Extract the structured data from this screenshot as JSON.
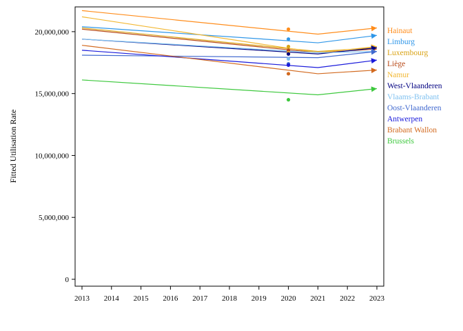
{
  "chart_data": {
    "type": "line",
    "title": "",
    "xlabel": "",
    "ylabel": "Fitted Utilisation Rate",
    "xlim": [
      2013,
      2023
    ],
    "ylim": [
      0,
      22000000
    ],
    "x_ticks": [
      "2013",
      "2014",
      "2015",
      "2016",
      "2017",
      "2018",
      "2019",
      "2020",
      "2021",
      "2022",
      "2023"
    ],
    "y_ticks": [
      {
        "value": 0,
        "label": "0"
      },
      {
        "value": 5000000,
        "label": "5,000,000"
      },
      {
        "value": 10000000,
        "label": "10,000,000"
      },
      {
        "value": 15000000,
        "label": "15,000,000"
      },
      {
        "value": 20000000,
        "label": "20,000,000"
      }
    ],
    "grid": false,
    "legend_position": "right",
    "series": [
      {
        "name": "Hainaut",
        "color": "#ff8c1a",
        "fit": [
          [
            2013,
            21700000
          ],
          [
            2021,
            19800000
          ],
          [
            2023,
            20300000
          ]
        ],
        "observed_2020": 20200000
      },
      {
        "name": "Limburg",
        "color": "#2e96e8",
        "fit": [
          [
            2013,
            20400000
          ],
          [
            2021,
            19100000
          ],
          [
            2023,
            19700000
          ]
        ],
        "observed_2020": 19400000
      },
      {
        "name": "Luxembourg",
        "color": "#d9a316",
        "fit": [
          [
            2013,
            20300000
          ],
          [
            2021,
            18400000
          ],
          [
            2023,
            18700000
          ]
        ],
        "observed_2020": 18800000
      },
      {
        "name": "Liège",
        "color": "#b84a18",
        "fit": [
          [
            2013,
            20200000
          ],
          [
            2021,
            18300000
          ],
          [
            2023,
            18600000
          ]
        ],
        "observed_2020": 18500000
      },
      {
        "name": "Namur",
        "color": "#f2b731",
        "fit": [
          [
            2013,
            21200000
          ],
          [
            2021,
            18300000
          ],
          [
            2023,
            18800000
          ]
        ],
        "observed_2020": 18300000
      },
      {
        "name": "West-Vlaanderen",
        "color": "#000080",
        "fit": [
          [
            2013,
            19400000
          ],
          [
            2021,
            18200000
          ],
          [
            2023,
            18700000
          ]
        ],
        "observed_2020": 18200000
      },
      {
        "name": "Vlaams-Brabant",
        "color": "#7fc1f0",
        "fit": [
          [
            2013,
            19400000
          ],
          [
            2021,
            18300000
          ],
          [
            2023,
            18400000
          ]
        ],
        "observed_2020": 17800000
      },
      {
        "name": "Oost-Vlaanderen",
        "color": "#4169cf",
        "fit": [
          [
            2013,
            18100000
          ],
          [
            2021,
            17900000
          ],
          [
            2023,
            18400000
          ]
        ],
        "observed_2020": 17400000
      },
      {
        "name": "Antwerpen",
        "color": "#1a1adb",
        "fit": [
          [
            2013,
            18500000
          ],
          [
            2021,
            17100000
          ],
          [
            2023,
            17700000
          ]
        ],
        "observed_2020": 17300000
      },
      {
        "name": "Brabant Wallon",
        "color": "#d2691e",
        "fit": [
          [
            2013,
            18900000
          ],
          [
            2021,
            16600000
          ],
          [
            2023,
            16900000
          ]
        ],
        "observed_2020": 16600000
      },
      {
        "name": "Brussels",
        "color": "#3cc83c",
        "fit": [
          [
            2013,
            16100000
          ],
          [
            2021,
            14900000
          ],
          [
            2023,
            15400000
          ]
        ],
        "observed_2020": 14500000
      }
    ]
  }
}
